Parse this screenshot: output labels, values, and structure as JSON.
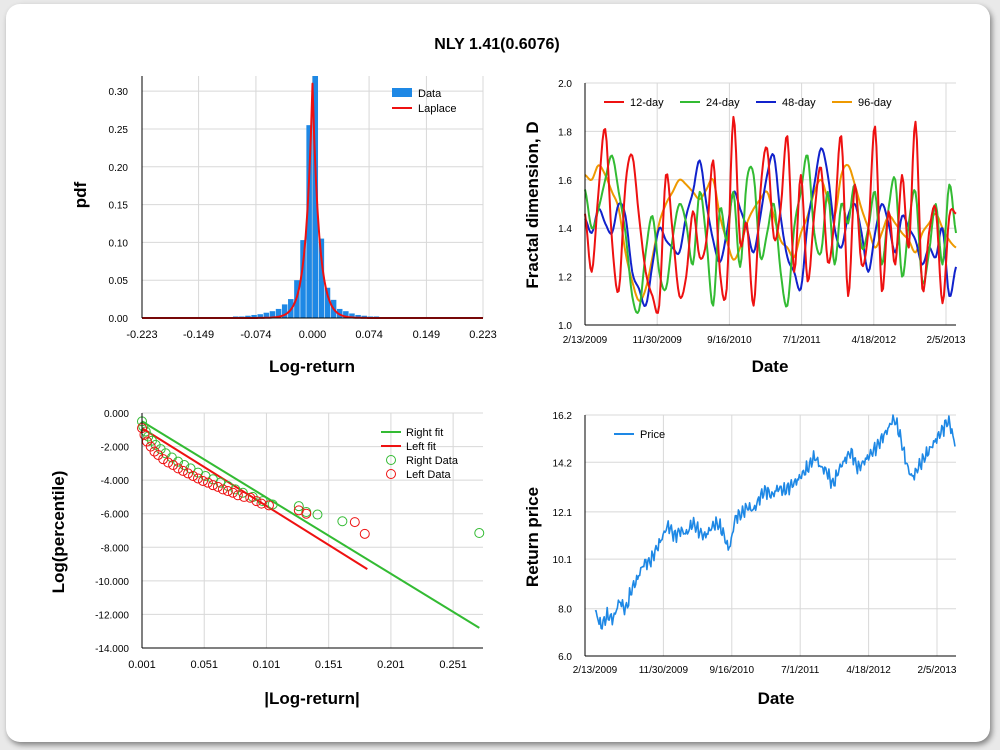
{
  "title": "NLY 1.41(0.6076)",
  "chart_data": [
    {
      "id": "pdf",
      "type": "bar",
      "xlabel": "Log-return",
      "ylabel": "pdf",
      "xlim": [
        -0.223,
        0.223
      ],
      "ylim": [
        0,
        0.32
      ],
      "x_ticks": [
        "-0.223",
        "-0.149",
        "-0.074",
        "0.000",
        "0.074",
        "0.149",
        "0.223"
      ],
      "y_ticks": [
        "0.00",
        "0.05",
        "0.10",
        "0.15",
        "0.20",
        "0.25",
        "0.30"
      ],
      "legend": [
        "Data",
        "Laplace"
      ],
      "legend_position": "top-right",
      "bin_width": 0.008,
      "bins_x": [
        -0.1,
        -0.092,
        -0.084,
        -0.076,
        -0.068,
        -0.06,
        -0.052,
        -0.044,
        -0.036,
        -0.028,
        -0.02,
        -0.012,
        -0.004,
        0.004,
        0.012,
        0.02,
        0.028,
        0.036,
        0.044,
        0.052,
        0.06,
        0.068,
        0.076,
        0.084,
        0.1,
        0.14
      ],
      "bins_y": [
        0.002,
        0.002,
        0.003,
        0.004,
        0.005,
        0.007,
        0.009,
        0.012,
        0.018,
        0.025,
        0.05,
        0.103,
        0.255,
        0.32,
        0.105,
        0.04,
        0.024,
        0.012,
        0.009,
        0.006,
        0.004,
        0.003,
        0.002,
        0.002,
        0.001,
        0.001
      ],
      "laplace": {
        "mu": 0.0,
        "b": 0.0085,
        "peak": 0.31
      }
    },
    {
      "id": "fractal",
      "type": "line",
      "xlabel": "Date",
      "ylabel": "Fractal dimension, D",
      "ylim": [
        1.0,
        2.0
      ],
      "x_ticks": [
        "2/13/2009",
        "11/30/2009",
        "9/16/2010",
        "7/1/2011",
        "4/18/2012",
        "2/5/2013"
      ],
      "y_ticks": [
        "1.0",
        "1.2",
        "1.4",
        "1.6",
        "1.8",
        "2.0"
      ],
      "legend_position": "top",
      "series": [
        {
          "name": "12-day",
          "color": "#ee1111",
          "values": [
            1.46,
            1.22,
            1.55,
            1.81,
            1.35,
            1.14,
            1.58,
            1.7,
            1.45,
            1.22,
            1.12,
            1.08,
            1.62,
            1.38,
            1.12,
            1.2,
            1.47,
            1.28,
            1.35,
            1.68,
            1.22,
            1.15,
            1.86,
            1.34,
            1.42,
            1.08,
            1.55,
            1.73,
            1.36,
            1.48,
            1.78,
            1.22,
            1.62,
            1.18,
            1.46,
            1.65,
            1.26,
            1.44,
            1.78,
            1.12,
            1.58,
            1.25,
            1.39,
            1.82,
            1.14,
            1.47,
            1.25,
            1.62,
            1.32,
            1.84,
            1.15,
            1.38,
            1.48,
            1.09,
            1.45,
            1.46
          ]
        },
        {
          "name": "24-day",
          "color": "#33bb33",
          "values": [
            1.56,
            1.4,
            1.48,
            1.6,
            1.7,
            1.55,
            1.38,
            1.12,
            1.06,
            1.3,
            1.45,
            1.22,
            1.15,
            1.36,
            1.5,
            1.42,
            1.25,
            1.55,
            1.35,
            1.08,
            1.48,
            1.35,
            1.55,
            1.24,
            1.6,
            1.62,
            1.28,
            1.38,
            1.5,
            1.22,
            1.08,
            1.4,
            1.55,
            1.7,
            1.38,
            1.3,
            1.55,
            1.25,
            1.5,
            1.42,
            1.58,
            1.32,
            1.4,
            1.55,
            1.25,
            1.48,
            1.6,
            1.2,
            1.42,
            1.55,
            1.18,
            1.3,
            1.5,
            1.25,
            1.58,
            1.38
          ]
        },
        {
          "name": "48-day",
          "color": "#1122cc",
          "values": [
            1.44,
            1.38,
            1.48,
            1.42,
            1.38,
            1.5,
            1.45,
            1.22,
            1.15,
            1.08,
            1.25,
            1.4,
            1.35,
            1.32,
            1.3,
            1.45,
            1.55,
            1.68,
            1.5,
            1.35,
            1.26,
            1.38,
            1.55,
            1.48,
            1.4,
            1.3,
            1.45,
            1.62,
            1.7,
            1.45,
            1.28,
            1.22,
            1.15,
            1.42,
            1.58,
            1.73,
            1.62,
            1.4,
            1.32,
            1.45,
            1.5,
            1.38,
            1.22,
            1.38,
            1.5,
            1.42,
            1.3,
            1.45,
            1.4,
            1.35,
            1.25,
            1.32,
            1.28,
            1.4,
            1.12,
            1.24
          ]
        },
        {
          "name": "96-day",
          "color": "#ee9900",
          "values": [
            1.62,
            1.6,
            1.66,
            1.62,
            1.55,
            1.48,
            1.3,
            1.18,
            1.1,
            1.15,
            1.28,
            1.42,
            1.5,
            1.55,
            1.6,
            1.58,
            1.55,
            1.52,
            1.56,
            1.6,
            1.45,
            1.35,
            1.27,
            1.32,
            1.42,
            1.48,
            1.52,
            1.55,
            1.45,
            1.35,
            1.32,
            1.28,
            1.38,
            1.45,
            1.55,
            1.6,
            1.52,
            1.45,
            1.62,
            1.66,
            1.58,
            1.48,
            1.4,
            1.32,
            1.38,
            1.45,
            1.42,
            1.38,
            1.35,
            1.3,
            1.38,
            1.42,
            1.46,
            1.4,
            1.35,
            1.32
          ]
        }
      ]
    },
    {
      "id": "tail",
      "type": "scatter",
      "xlabel": "|Log-return|",
      "ylabel": "Log(percentile)",
      "xlim": [
        0.001,
        0.275
      ],
      "ylim": [
        -14.0,
        0.0
      ],
      "x_ticks": [
        "0.001",
        "0.051",
        "0.101",
        "0.151",
        "0.201",
        "0.251"
      ],
      "y_ticks": [
        "0.000",
        "-2.000",
        "-4.000",
        "-6.000",
        "-8.000",
        "-10.000",
        "-12.000",
        "-14.000"
      ],
      "legend": [
        "Right fit",
        "Left fit",
        "Right Data",
        "Left Data"
      ],
      "legend_position": "top-right",
      "right_fit": {
        "x": [
          0.001,
          0.272
        ],
        "y": [
          -0.5,
          -12.8
        ],
        "color": "#33bb33"
      },
      "left_fit": {
        "x": [
          0.001,
          0.182
        ],
        "y": [
          -0.9,
          -9.3
        ],
        "color": "#ee1111"
      },
      "right_data": {
        "color": "#33bb33",
        "x": [
          0.001,
          0.002,
          0.004,
          0.006,
          0.009,
          0.012,
          0.016,
          0.02,
          0.025,
          0.03,
          0.035,
          0.04,
          0.046,
          0.052,
          0.058,
          0.064,
          0.07,
          0.076,
          0.082,
          0.09,
          0.098,
          0.106,
          0.127,
          0.133,
          0.142,
          0.162,
          0.272
        ],
        "y": [
          -0.5,
          -0.8,
          -1.1,
          -1.4,
          -1.65,
          -1.9,
          -2.15,
          -2.4,
          -2.65,
          -2.9,
          -3.1,
          -3.3,
          -3.55,
          -3.75,
          -3.95,
          -4.15,
          -4.35,
          -4.55,
          -4.75,
          -5.0,
          -5.25,
          -5.45,
          -5.55,
          -5.9,
          -6.05,
          -6.45,
          -7.15
        ]
      },
      "left_data": {
        "color": "#ee1111",
        "x": [
          0.001,
          0.003,
          0.005,
          0.008,
          0.011,
          0.014,
          0.018,
          0.022,
          0.026,
          0.03,
          0.034,
          0.038,
          0.042,
          0.046,
          0.05,
          0.054,
          0.058,
          0.062,
          0.066,
          0.07,
          0.074,
          0.078,
          0.083,
          0.088,
          0.093,
          0.097,
          0.103,
          0.127,
          0.133,
          0.172,
          0.18
        ],
        "y": [
          -0.9,
          -1.3,
          -1.7,
          -2.0,
          -2.3,
          -2.5,
          -2.75,
          -2.95,
          -3.1,
          -3.3,
          -3.45,
          -3.6,
          -3.75,
          -3.9,
          -4.05,
          -4.15,
          -4.3,
          -4.4,
          -4.55,
          -4.65,
          -4.75,
          -4.9,
          -5.0,
          -5.05,
          -5.25,
          -5.4,
          -5.5,
          -5.8,
          -6.0,
          -6.5,
          -7.2
        ]
      }
    },
    {
      "id": "price",
      "type": "line",
      "xlabel": "Date",
      "ylabel": "Return price",
      "ylim": [
        6.0,
        16.2
      ],
      "x_ticks": [
        "2/13/2009",
        "11/30/2009",
        "9/16/2010",
        "7/1/2011",
        "4/18/2012",
        "2/5/2013"
      ],
      "y_ticks": [
        "6.0",
        "8.0",
        "10.1",
        "12.1",
        "14.2",
        "16.2"
      ],
      "legend_position": "top-left",
      "series": [
        {
          "name": "Price",
          "color": "#1e88e5",
          "values": [
            7.9,
            7.3,
            7.7,
            7.6,
            8.3,
            8.0,
            8.8,
            9.3,
            9.9,
            10.0,
            10.5,
            11.0,
            11.5,
            11.1,
            11.3,
            11.2,
            11.6,
            11.3,
            11.1,
            11.4,
            11.6,
            11.2,
            10.6,
            11.8,
            12.0,
            12.3,
            12.2,
            12.7,
            13.0,
            12.8,
            13.1,
            13.0,
            13.2,
            13.4,
            13.7,
            14.0,
            14.4,
            14.0,
            13.8,
            13.3,
            13.9,
            14.3,
            14.6,
            14.0,
            14.2,
            14.5,
            14.8,
            15.2,
            15.6,
            16.0,
            15.3,
            14.2,
            13.6,
            14.0,
            14.4,
            14.8,
            15.2,
            15.6,
            15.9,
            15.0
          ]
        }
      ]
    }
  ]
}
